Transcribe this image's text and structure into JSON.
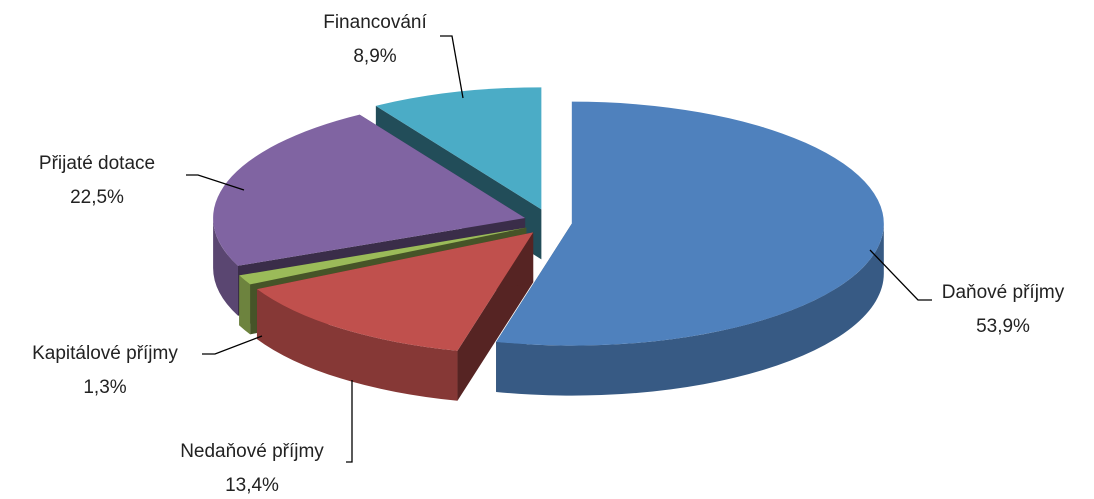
{
  "chart_data": {
    "type": "pie3d",
    "categories": [
      "Daňové příjmy",
      "Nedaňové příjmy",
      "Kapitálové příjmy",
      "Přijaté dotace",
      "Financování"
    ],
    "values": [
      53.9,
      13.4,
      1.3,
      22.5,
      8.9
    ],
    "value_labels": [
      "53,9%",
      "13,4%",
      "1,3%",
      "22,5%",
      "8,9%"
    ],
    "colors": [
      "#4f81bd",
      "#c0504d",
      "#9bbb59",
      "#8064a2",
      "#4bacc6"
    ]
  }
}
